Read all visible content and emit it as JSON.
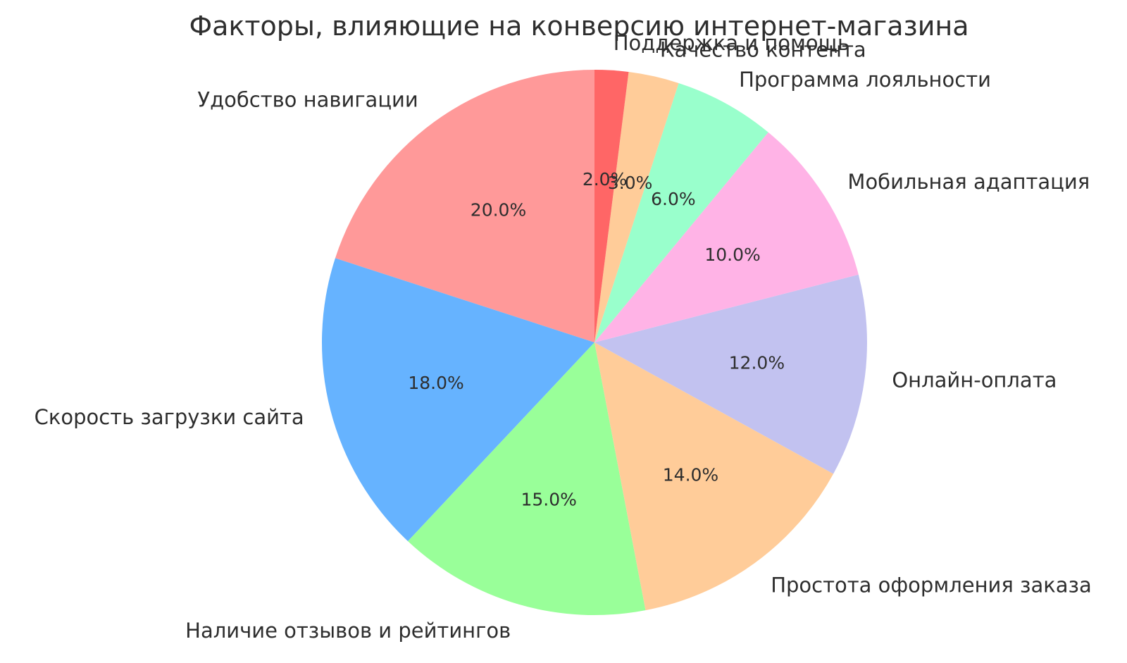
{
  "page": {
    "background_color": "#ffffff"
  },
  "chart_data": {
    "type": "pie",
    "title": "Факторы, влияющие на конверсию интернет-магазина",
    "categories": [
      "Удобство навигации",
      "Скорость загрузки сайта",
      "Наличие отзывов и рейтингов",
      "Простота оформления заказа",
      "Онлайн-оплата",
      "Мобильная адаптация",
      "Программа лояльности",
      "Качество контента",
      "Поддержка и помощь"
    ],
    "values": [
      20.0,
      18.0,
      15.0,
      14.0,
      12.0,
      10.0,
      6.0,
      3.0,
      2.0
    ],
    "slices": [
      {
        "label": "Удобство навигации",
        "value": 20.0,
        "pct_label": "20.0%",
        "color": "#ff9999"
      },
      {
        "label": "Скорость загрузки сайта",
        "value": 18.0,
        "pct_label": "18.0%",
        "color": "#66b3ff"
      },
      {
        "label": "Наличие отзывов и рейтингов",
        "value": 15.0,
        "pct_label": "15.0%",
        "color": "#99ff99"
      },
      {
        "label": "Простота оформления заказа",
        "value": 14.0,
        "pct_label": "14.0%",
        "color": "#ffcc99"
      },
      {
        "label": "Онлайн-оплата",
        "value": 12.0,
        "pct_label": "12.0%",
        "color": "#c2c2f0"
      },
      {
        "label": "Мобильная адаптация",
        "value": 10.0,
        "pct_label": "10.0%",
        "color": "#ffb3e6"
      },
      {
        "label": "Программа лояльности",
        "value": 6.0,
        "pct_label": "6.0%",
        "color": "#99ffcc"
      },
      {
        "label": "Качество контента",
        "value": 3.0,
        "pct_label": "3.0%",
        "color": "#ffcc99"
      },
      {
        "label": "Поддержка и помощь",
        "value": 2.0,
        "pct_label": "2.0%",
        "color": "#ff6666"
      }
    ],
    "layout": {
      "start_angle": 90,
      "direction": "counterclockwise",
      "label_distance": 1.1,
      "pct_distance": 0.6,
      "text_color": "#2e2e2e",
      "legend": "none",
      "grid": false
    }
  }
}
